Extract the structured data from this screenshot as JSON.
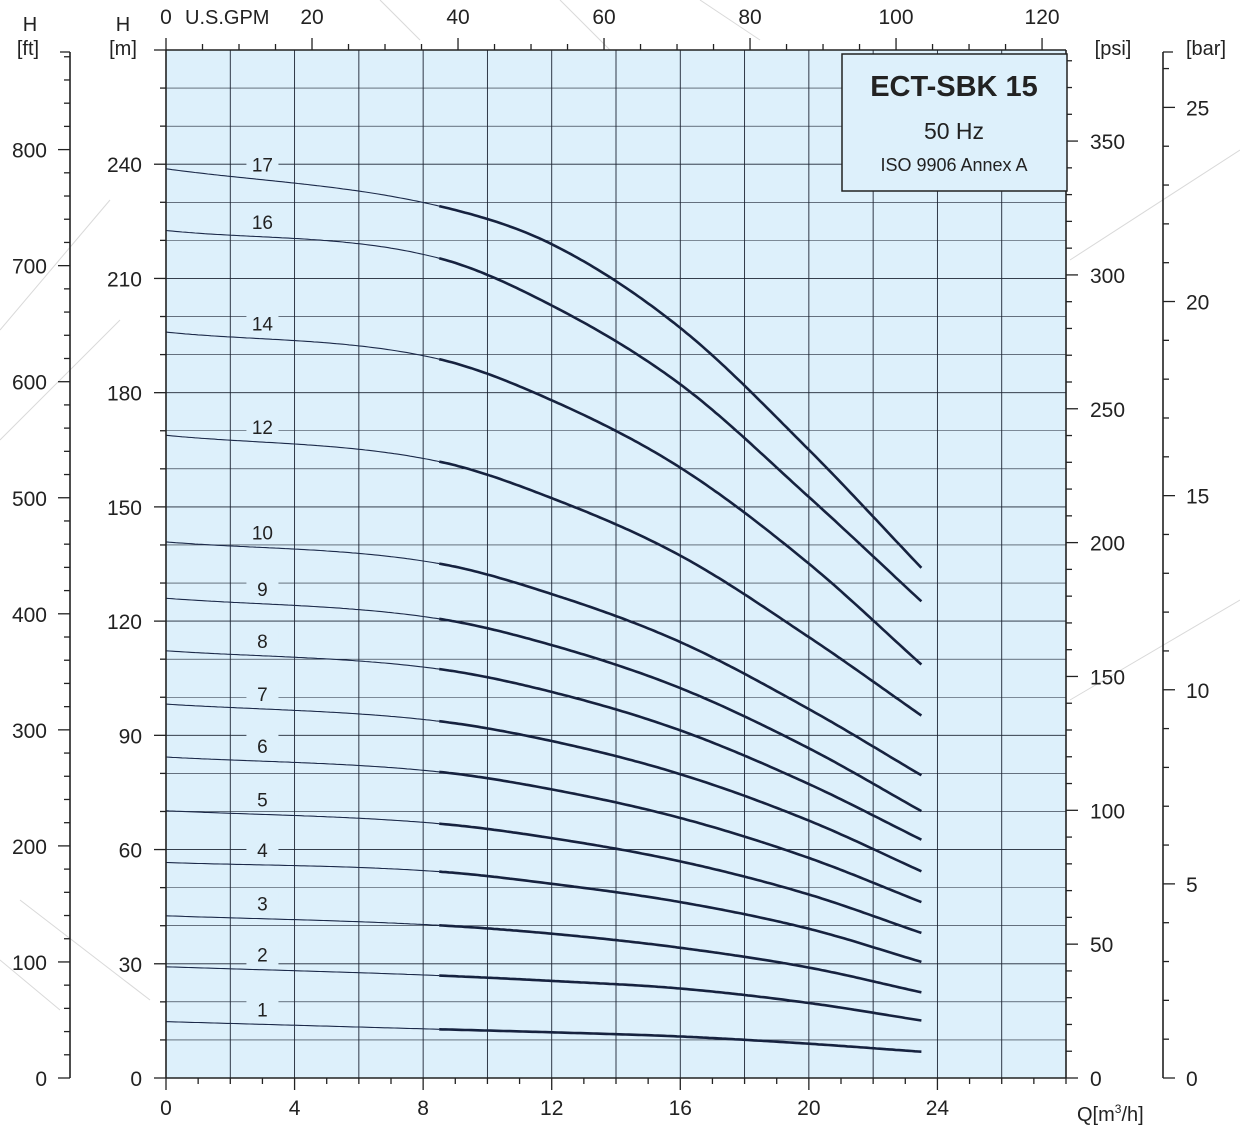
{
  "chart_data": {
    "type": "line",
    "title": "ECT-SBK 15",
    "subtitle_frequency": "50 Hz",
    "subtitle_standard": "ISO 9906 Annex A",
    "x_label": "Q[m³/h]",
    "x_label_prefix": "Q[m",
    "x_label_sup": "3",
    "x_label_suffix": "/h]",
    "xlim": [
      0,
      28
    ],
    "x_ticks": [
      0,
      4,
      8,
      12,
      16,
      20,
      24
    ],
    "top_axis_label": "U.S.GPM",
    "top_axis_range": [
      0,
      123.3
    ],
    "top_ticks": [
      0,
      20,
      40,
      60,
      80,
      100,
      120
    ],
    "y_label_m_top": "H",
    "y_label_m_unit": "[m]",
    "ylim_m": [
      0,
      270
    ],
    "y_ticks_m": [
      0,
      30,
      60,
      90,
      120,
      150,
      180,
      210,
      240
    ],
    "y_label_ft_top": "H",
    "y_label_ft_unit": "[ft]",
    "y_ticks_ft": [
      0,
      100,
      200,
      300,
      400,
      500,
      600,
      700,
      800
    ],
    "psi_label": "[psi]",
    "y_ticks_psi": [
      0,
      50,
      100,
      150,
      200,
      250,
      300,
      350
    ],
    "bar_label": "[bar]",
    "y_ticks_bar": [
      0,
      5,
      10,
      15,
      20,
      25
    ],
    "grid": true,
    "legend": "none",
    "colors": {
      "plot_bg": "#ddf0fb",
      "curve": "#16223f",
      "grid": "#1c2433"
    },
    "recommended_range": [
      8.5,
      23.5
    ],
    "series": [
      {
        "name": "1",
        "q": [
          0,
          8.5,
          12,
          16,
          20,
          23.5
        ],
        "h": [
          14.8,
          12.8,
          12,
          10.9,
          9.0,
          6.9
        ]
      },
      {
        "name": "2",
        "q": [
          0,
          8.5,
          12,
          16,
          20,
          23.5
        ],
        "h": [
          29.2,
          26.9,
          25.5,
          23.5,
          19.7,
          15.1
        ]
      },
      {
        "name": "3",
        "q": [
          0,
          8.5,
          12,
          16,
          20,
          23.5
        ],
        "h": [
          42.6,
          40.1,
          37.9,
          34.2,
          29.0,
          22.5
        ]
      },
      {
        "name": "4",
        "q": [
          0,
          8.5,
          12,
          16,
          20,
          23.5
        ],
        "h": [
          56.6,
          54.2,
          51.0,
          46.2,
          39.2,
          30.5
        ]
      },
      {
        "name": "5",
        "q": [
          0,
          8.5,
          12,
          16,
          20,
          23.5
        ],
        "h": [
          70.2,
          66.8,
          63.0,
          56.9,
          48.2,
          38.1
        ]
      },
      {
        "name": "6",
        "q": [
          0,
          8.5,
          12,
          16,
          20,
          23.5
        ],
        "h": [
          84.3,
          80.4,
          75.8,
          68.3,
          57.8,
          46.2
        ]
      },
      {
        "name": "7",
        "q": [
          0,
          8.5,
          12,
          16,
          20,
          23.5
        ],
        "h": [
          98.2,
          93.7,
          88.5,
          79.8,
          67.6,
          54.3
        ]
      },
      {
        "name": "8",
        "q": [
          0,
          8.5,
          12,
          16,
          20,
          23.5
        ],
        "h": [
          112.2,
          107.4,
          101.4,
          91.3,
          77.2,
          62.6
        ]
      },
      {
        "name": "9",
        "q": [
          0,
          8.5,
          12,
          16,
          20,
          23.5
        ],
        "h": [
          126.0,
          120.6,
          113.7,
          102.4,
          86.6,
          70.1
        ]
      },
      {
        "name": "10",
        "q": [
          0,
          8.5,
          12,
          16,
          20,
          23.5
        ],
        "h": [
          140.8,
          135.1,
          127.1,
          114.5,
          96.9,
          79.5
        ]
      },
      {
        "name": "12",
        "q": [
          0,
          8.5,
          12,
          16,
          20,
          23.5
        ],
        "h": [
          168.8,
          161.9,
          152.3,
          137.2,
          115.8,
          95.2
        ]
      },
      {
        "name": "14",
        "q": [
          0,
          8.5,
          12,
          16,
          20,
          23.5
        ],
        "h": [
          195.9,
          188.8,
          178.0,
          160.3,
          135.1,
          108.6
        ]
      },
      {
        "name": "16",
        "q": [
          0,
          8.5,
          12,
          16,
          20,
          23.5
        ],
        "h": [
          222.6,
          215.3,
          202.9,
          182.2,
          152.6,
          125.2
        ]
      },
      {
        "name": "17",
        "q": [
          0,
          8.5,
          12,
          16,
          20,
          23.5
        ],
        "h": [
          238.8,
          229.0,
          219.0,
          197.0,
          165.0,
          134.0
        ]
      }
    ]
  }
}
